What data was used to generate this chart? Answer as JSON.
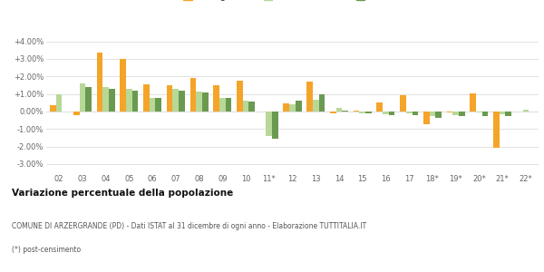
{
  "years": [
    "02",
    "03",
    "04",
    "05",
    "06",
    "07",
    "08",
    "09",
    "10",
    "11*",
    "12",
    "13",
    "14",
    "15",
    "16",
    "17",
    "18*",
    "19*",
    "20*",
    "21*",
    "22*"
  ],
  "arzergrande": [
    0.35,
    -0.2,
    3.35,
    3.02,
    1.55,
    1.48,
    1.92,
    1.5,
    1.73,
    0.0,
    0.45,
    1.68,
    -0.12,
    0.03,
    0.52,
    0.95,
    -0.72,
    -0.05,
    1.05,
    -2.07,
    0.0
  ],
  "provincia_pd": [
    1.0,
    1.58,
    1.4,
    1.28,
    0.78,
    1.28,
    1.15,
    0.78,
    0.62,
    -1.42,
    0.42,
    0.65,
    0.18,
    -0.1,
    -0.15,
    -0.12,
    -0.28,
    -0.22,
    -0.07,
    -0.15,
    0.12
  ],
  "veneto": [
    0.0,
    1.4,
    1.3,
    1.18,
    0.75,
    1.18,
    1.08,
    0.75,
    0.55,
    -1.55,
    0.62,
    0.97,
    0.05,
    -0.12,
    -0.2,
    -0.2,
    -0.38,
    -0.28,
    -0.25,
    -0.27,
    0.0
  ],
  "color_arzergrande": "#f5a42a",
  "color_provincia": "#b8d898",
  "color_veneto": "#6a9a50",
  "ylim_min": -3.5,
  "ylim_max": 4.5,
  "yticks": [
    -3.0,
    -2.0,
    -1.0,
    0.0,
    1.0,
    2.0,
    3.0,
    4.0
  ],
  "ytick_labels": [
    "-3.00%",
    "-2.00%",
    "-1.00%",
    "0.00%",
    "+1.00%",
    "+2.00%",
    "+3.00%",
    "+4.00%"
  ],
  "title_bold": "Variazione percentuale della popolazione",
  "subtitle1": "COMUNE DI ARZERGRANDE (PD) - Dati ISTAT al 31 dicembre di ogni anno - Elaborazione TUTTITALIA.IT",
  "subtitle2": "(*) post-censimento",
  "background_color": "#ffffff",
  "grid_color": "#dddddd"
}
